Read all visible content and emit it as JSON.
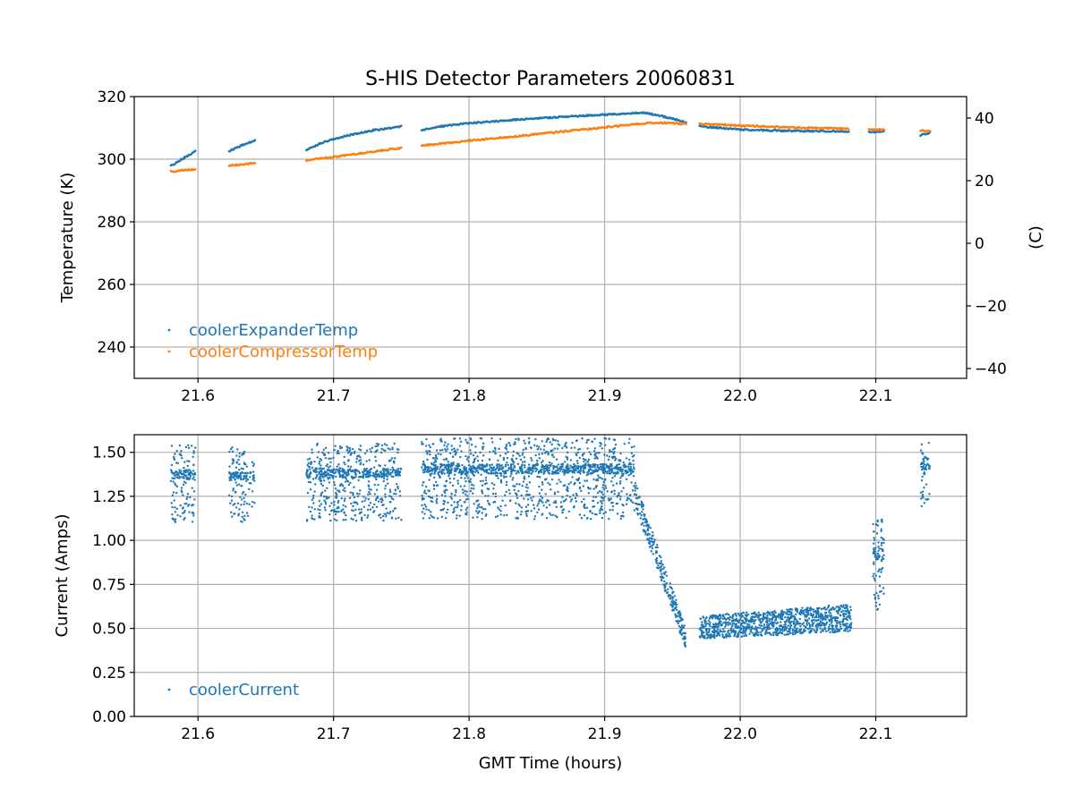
{
  "figure_title": "S-HIS Detector Parameters 20060831",
  "colors": {
    "blue": "#1f77b4",
    "orange": "#ff7f0e",
    "grid": "#b0b0b0",
    "axis": "#000000"
  },
  "chart_data": [
    {
      "type": "scatter",
      "title": "S-HIS Detector Parameters 20060831",
      "xlabel": "",
      "ylabel": "Temperature (K)",
      "y2label": "(C)",
      "xlim": [
        21.553,
        22.167
      ],
      "ylim": [
        230,
        320
      ],
      "y2lim": [
        -43.15,
        46.85
      ],
      "xticks": [
        "21.6",
        "21.7",
        "21.8",
        "21.9",
        "22.0",
        "22.1"
      ],
      "xtick_values": [
        21.6,
        21.7,
        21.8,
        21.9,
        22.0,
        22.1
      ],
      "yticks": [
        "240",
        "260",
        "280",
        "300",
        "320"
      ],
      "ytick_values": [
        240,
        260,
        280,
        300,
        320
      ],
      "y2ticks": [
        "−40",
        "−20",
        "0",
        "20",
        "40"
      ],
      "y2tick_values": [
        -40,
        -20,
        0,
        20,
        40
      ],
      "grid": true,
      "legend_position": "lower-left",
      "series": [
        {
          "name": "coolerExpanderTemp",
          "color": "#1f77b4",
          "segments": [
            [
              [
                21.58,
                297.8
              ],
              [
                21.59,
                300.5
              ],
              [
                21.598,
                302.6
              ]
            ],
            [
              [
                21.623,
                302.5
              ],
              [
                21.633,
                304.6
              ],
              [
                21.642,
                306.0
              ]
            ],
            [
              [
                21.68,
                303.0
              ],
              [
                21.69,
                305.0
              ],
              [
                21.7,
                306.5
              ],
              [
                21.715,
                308.0
              ],
              [
                21.73,
                309.3
              ],
              [
                21.75,
                310.5
              ]
            ],
            [
              [
                21.765,
                309.3
              ],
              [
                21.78,
                310.5
              ],
              [
                21.8,
                311.5
              ],
              [
                21.83,
                312.5
              ],
              [
                21.86,
                313.3
              ],
              [
                21.89,
                314.0
              ],
              [
                21.915,
                314.6
              ],
              [
                21.93,
                314.8
              ],
              [
                21.945,
                313.5
              ],
              [
                21.96,
                311.8
              ]
            ],
            [
              [
                21.97,
                310.5
              ],
              [
                21.985,
                310.0
              ],
              [
                22.0,
                309.5
              ],
              [
                22.02,
                309.2
              ],
              [
                22.05,
                309.0
              ],
              [
                22.08,
                308.9
              ]
            ],
            [
              [
                22.095,
                308.7
              ],
              [
                22.106,
                308.9
              ]
            ],
            [
              [
                22.133,
                307.7
              ],
              [
                22.14,
                308.5
              ]
            ]
          ]
        },
        {
          "name": "coolerCompressorTemp",
          "color": "#ff7f0e",
          "segments": [
            [
              [
                21.58,
                296.1
              ],
              [
                21.598,
                296.8
              ]
            ],
            [
              [
                21.623,
                297.9
              ],
              [
                21.642,
                298.8
              ]
            ],
            [
              [
                21.68,
                299.7
              ],
              [
                21.7,
                300.7
              ],
              [
                21.72,
                301.9
              ],
              [
                21.75,
                303.6
              ]
            ],
            [
              [
                21.765,
                304.3
              ],
              [
                21.8,
                305.9
              ],
              [
                21.85,
                308.0
              ],
              [
                21.9,
                310.2
              ],
              [
                21.93,
                311.5
              ],
              [
                21.945,
                311.6
              ],
              [
                21.96,
                311.2
              ]
            ],
            [
              [
                21.97,
                311.3
              ],
              [
                22.0,
                310.7
              ],
              [
                22.04,
                310.1
              ],
              [
                22.08,
                309.7
              ]
            ],
            [
              [
                22.095,
                309.5
              ],
              [
                22.106,
                309.4
              ]
            ],
            [
              [
                22.133,
                309.1
              ],
              [
                22.14,
                309.0
              ]
            ]
          ]
        }
      ]
    },
    {
      "type": "scatter",
      "title": "",
      "xlabel": "GMT Time (hours)",
      "ylabel": "Current (Amps)",
      "xlim": [
        21.553,
        22.167
      ],
      "ylim": [
        0.0,
        1.6
      ],
      "xticks": [
        "21.6",
        "21.7",
        "21.8",
        "21.9",
        "22.0",
        "22.1"
      ],
      "xtick_values": [
        21.6,
        21.7,
        21.8,
        21.9,
        22.0,
        22.1
      ],
      "yticks": [
        "0.00",
        "0.25",
        "0.50",
        "0.75",
        "1.00",
        "1.25",
        "1.50"
      ],
      "ytick_values": [
        0.0,
        0.25,
        0.5,
        0.75,
        1.0,
        1.25,
        1.5
      ],
      "grid": true,
      "legend_position": "lower-left",
      "series": [
        {
          "name": "coolerCurrent",
          "color": "#1f77b4",
          "clusters": [
            {
              "x": [
                21.58,
                21.598
              ],
              "y": [
                1.1,
                1.54
              ],
              "n": 160
            },
            {
              "x": [
                21.623,
                21.642
              ],
              "y": [
                1.1,
                1.53
              ],
              "n": 160
            },
            {
              "x": [
                21.68,
                21.75
              ],
              "y": [
                1.11,
                1.55
              ],
              "n": 650
            },
            {
              "x": [
                21.765,
                21.922
              ],
              "y": [
                1.12,
                1.58
              ],
              "n": 1500
            },
            {
              "x": [
                21.922,
                21.96
              ],
              "y_start": [
                1.2,
                1.35
              ],
              "y_end": [
                0.38,
                0.5
              ],
              "n": 260
            },
            {
              "x": [
                21.97,
                22.082
              ],
              "y_start": [
                0.44,
                0.57
              ],
              "y_end": [
                0.48,
                0.64
              ],
              "n": 1000
            },
            {
              "x": [
                22.098,
                22.106
              ],
              "y": [
                0.6,
                1.12
              ],
              "n": 90
            },
            {
              "x": [
                22.133,
                22.14
              ],
              "y": [
                1.18,
                1.57
              ],
              "n": 55
            }
          ]
        }
      ]
    }
  ]
}
